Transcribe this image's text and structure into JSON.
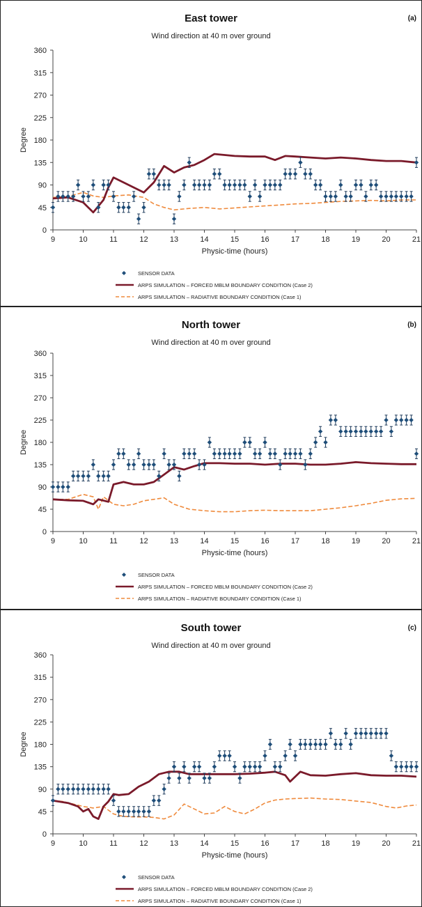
{
  "chart_data": [
    {
      "type": "line",
      "panel_label": "(a)",
      "title": "East tower",
      "subtitle": "Wind direction at 40 m over ground",
      "xlabel": "Physic-time (hours)",
      "ylabel": "Degree",
      "xlim": [
        9,
        21
      ],
      "ylim": [
        0,
        360
      ],
      "x_ticks": [
        9,
        10,
        11,
        12,
        13,
        14,
        15,
        16,
        17,
        18,
        19,
        20,
        21
      ],
      "y_ticks": [
        0,
        45,
        90,
        135,
        180,
        225,
        270,
        315,
        360
      ],
      "grid": false,
      "legend_position": "bottom",
      "legend": [
        "SENSOR DATA",
        "ARPS SIMULATION – FORCED  MBLM BOUNDARY CONDITION  (Case 2)",
        "ARPS SIMULATION – RADIATIVE  BOUNDARY CONDITION  (Case 1)"
      ],
      "series": [
        {
          "name": "SENSOR DATA",
          "style": "markers-errorbars",
          "error": 10,
          "x": [
            9.0,
            9.17,
            9.33,
            9.5,
            9.67,
            9.83,
            10.0,
            10.17,
            10.33,
            10.5,
            10.67,
            10.83,
            11.0,
            11.17,
            11.33,
            11.5,
            11.67,
            11.83,
            12.0,
            12.17,
            12.33,
            12.5,
            12.67,
            12.83,
            13.0,
            13.17,
            13.33,
            13.5,
            13.67,
            13.83,
            14.0,
            14.17,
            14.33,
            14.5,
            14.67,
            14.83,
            15.0,
            15.17,
            15.33,
            15.5,
            15.67,
            15.83,
            16.0,
            16.17,
            16.33,
            16.5,
            16.67,
            16.83,
            17.0,
            17.17,
            17.33,
            17.5,
            17.67,
            17.83,
            18.0,
            18.17,
            18.33,
            18.5,
            18.67,
            18.83,
            19.0,
            19.17,
            19.33,
            19.5,
            19.67,
            19.83,
            20.0,
            20.17,
            20.33,
            20.5,
            20.67,
            20.83,
            21.0
          ],
          "values": [
            45,
            67,
            67,
            67,
            67,
            90,
            67,
            67,
            90,
            45,
            90,
            90,
            67,
            45,
            45,
            45,
            67,
            22,
            45,
            112,
            112,
            90,
            90,
            90,
            22,
            67,
            90,
            135,
            90,
            90,
            90,
            90,
            112,
            112,
            90,
            90,
            90,
            90,
            90,
            67,
            90,
            67,
            90,
            90,
            90,
            90,
            112,
            112,
            112,
            135,
            112,
            112,
            90,
            90,
            67,
            67,
            67,
            90,
            67,
            67,
            90,
            90,
            67,
            90,
            90,
            67,
            67,
            67,
            67,
            67,
            67,
            67,
            135
          ]
        },
        {
          "name": "ARPS SIMULATION – FORCED  MBLM BOUNDARY CONDITION  (Case 2)",
          "style": "solid",
          "color": "#7a1a2a",
          "x": [
            9.0,
            9.5,
            10.0,
            10.33,
            10.67,
            10.83,
            11.0,
            11.33,
            11.67,
            12.0,
            12.33,
            12.67,
            13.0,
            13.33,
            13.67,
            14.0,
            14.33,
            14.67,
            15.0,
            15.5,
            16.0,
            16.33,
            16.67,
            17.0,
            17.5,
            18.0,
            18.5,
            19.0,
            19.5,
            20.0,
            20.5,
            21.0
          ],
          "values": [
            63,
            65,
            55,
            35,
            60,
            85,
            105,
            95,
            85,
            75,
            95,
            128,
            115,
            125,
            130,
            140,
            152,
            150,
            148,
            147,
            147,
            140,
            148,
            147,
            145,
            143,
            145,
            143,
            140,
            138,
            138,
            135
          ]
        },
        {
          "name": "ARPS SIMULATION – RADIATIVE  BOUNDARY CONDITION  (Case 1)",
          "style": "dashed",
          "color": "#ef8a3c",
          "x": [
            9.0,
            9.5,
            10.0,
            10.33,
            10.67,
            11.0,
            11.5,
            12.0,
            12.33,
            12.67,
            13.0,
            13.5,
            14.0,
            14.5,
            15.0,
            15.5,
            16.0,
            16.5,
            17.0,
            17.5,
            18.0,
            18.5,
            19.0,
            19.5,
            20.0,
            20.5,
            21.0
          ],
          "values": [
            65,
            67,
            75,
            68,
            65,
            68,
            70,
            65,
            52,
            45,
            40,
            43,
            45,
            42,
            44,
            46,
            48,
            50,
            52,
            53,
            55,
            57,
            58,
            59,
            58,
            60,
            60
          ]
        }
      ]
    },
    {
      "type": "line",
      "panel_label": "(b)",
      "title": "North tower",
      "subtitle": "Wind direction at 40 m over ground",
      "xlabel": "Physic-time (hours)",
      "ylabel": "Degree",
      "xlim": [
        9,
        21
      ],
      "ylim": [
        0,
        360
      ],
      "x_ticks": [
        9,
        10,
        11,
        12,
        13,
        14,
        15,
        16,
        17,
        18,
        19,
        20,
        21
      ],
      "y_ticks": [
        0,
        45,
        90,
        135,
        180,
        225,
        270,
        315,
        360
      ],
      "grid": false,
      "legend_position": "bottom",
      "legend": [
        "SENSOR DATA",
        "ARPS SIMULATION – FORCED  MBLM BOUNDARY CONDITION  (Case 2)",
        "ARPS SIMULATION – RADIATIVE  BOUNDARY CONDITION  (Case 1)"
      ],
      "series": [
        {
          "name": "SENSOR DATA",
          "style": "markers-errorbars",
          "error": 10,
          "x": [
            9.0,
            9.17,
            9.33,
            9.5,
            9.67,
            9.83,
            10.0,
            10.17,
            10.33,
            10.5,
            10.67,
            10.83,
            11.0,
            11.17,
            11.33,
            11.5,
            11.67,
            11.83,
            12.0,
            12.17,
            12.33,
            12.5,
            12.67,
            12.83,
            13.0,
            13.17,
            13.33,
            13.5,
            13.67,
            13.83,
            14.0,
            14.17,
            14.33,
            14.5,
            14.67,
            14.83,
            15.0,
            15.17,
            15.33,
            15.5,
            15.67,
            15.83,
            16.0,
            16.17,
            16.33,
            16.5,
            16.67,
            16.83,
            17.0,
            17.17,
            17.33,
            17.5,
            17.67,
            17.83,
            18.0,
            18.17,
            18.33,
            18.5,
            18.67,
            18.83,
            19.0,
            19.17,
            19.33,
            19.5,
            19.67,
            19.83,
            20.0,
            20.17,
            20.33,
            20.5,
            20.67,
            20.83,
            21.0
          ],
          "values": [
            90,
            90,
            90,
            90,
            112,
            112,
            112,
            112,
            135,
            112,
            112,
            112,
            135,
            157,
            157,
            135,
            135,
            157,
            135,
            135,
            135,
            112,
            157,
            135,
            135,
            112,
            157,
            157,
            157,
            135,
            135,
            180,
            157,
            157,
            157,
            157,
            157,
            157,
            180,
            180,
            157,
            157,
            180,
            157,
            157,
            135,
            157,
            157,
            157,
            157,
            135,
            157,
            180,
            202,
            180,
            225,
            225,
            202,
            202,
            202,
            202,
            202,
            202,
            202,
            202,
            202,
            225,
            202,
            225,
            225,
            225,
            225,
            157
          ]
        },
        {
          "name": "ARPS SIMULATION – FORCED  MBLM BOUNDARY CONDITION  (Case 2)",
          "style": "solid",
          "color": "#7a1a2a",
          "x": [
            9.0,
            9.5,
            10.0,
            10.33,
            10.5,
            10.83,
            11.0,
            11.33,
            11.67,
            12.0,
            12.33,
            12.67,
            13.0,
            13.33,
            13.67,
            14.0,
            14.5,
            15.0,
            15.5,
            16.0,
            16.5,
            17.0,
            17.5,
            18.0,
            18.5,
            19.0,
            19.5,
            20.0,
            20.5,
            21.0
          ],
          "values": [
            65,
            63,
            62,
            55,
            65,
            60,
            95,
            100,
            95,
            95,
            100,
            115,
            130,
            125,
            132,
            138,
            138,
            137,
            137,
            135,
            137,
            137,
            135,
            135,
            137,
            140,
            138,
            137,
            136,
            136
          ]
        },
        {
          "name": "ARPS SIMULATION – RADIATIVE  BOUNDARY CONDITION  (Case 1)",
          "style": "dashed",
          "color": "#ef8a3c",
          "x": [
            9.0,
            9.5,
            10.0,
            10.33,
            10.5,
            10.67,
            11.0,
            11.33,
            11.67,
            12.0,
            12.33,
            12.67,
            13.0,
            13.5,
            14.0,
            14.5,
            15.0,
            15.5,
            16.0,
            16.5,
            17.0,
            17.5,
            18.0,
            18.5,
            19.0,
            19.5,
            20.0,
            20.5,
            21.0
          ],
          "values": [
            65,
            65,
            75,
            70,
            45,
            70,
            55,
            52,
            55,
            62,
            65,
            68,
            55,
            45,
            42,
            40,
            40,
            42,
            43,
            42,
            42,
            42,
            45,
            48,
            52,
            57,
            63,
            66,
            67
          ]
        }
      ]
    },
    {
      "type": "line",
      "panel_label": "(c)",
      "title": "South tower",
      "subtitle": "Wind direction at 40 m over ground",
      "xlabel": "Physic-time (hours)",
      "ylabel": "Degree",
      "xlim": [
        9,
        21
      ],
      "ylim": [
        0,
        360
      ],
      "x_ticks": [
        9,
        10,
        11,
        12,
        13,
        14,
        15,
        16,
        17,
        18,
        19,
        20,
        21
      ],
      "y_ticks": [
        0,
        45,
        90,
        135,
        180,
        225,
        270,
        315,
        360
      ],
      "grid": false,
      "legend_position": "bottom",
      "legend": [
        "SENSOR DATA",
        "ARPS SIMULATION – FORCED  MBLM BOUNDARY CONDITION  (Case 2)",
        "ARPS SIMULATION – RADIATIVE  BOUNDARY CONDITION  (Case 1)"
      ],
      "series": [
        {
          "name": "SENSOR DATA",
          "style": "markers-errorbars",
          "error": 10,
          "x": [
            9.0,
            9.17,
            9.33,
            9.5,
            9.67,
            9.83,
            10.0,
            10.17,
            10.33,
            10.5,
            10.67,
            10.83,
            11.0,
            11.17,
            11.33,
            11.5,
            11.67,
            11.83,
            12.0,
            12.17,
            12.33,
            12.5,
            12.67,
            12.83,
            13.0,
            13.17,
            13.33,
            13.5,
            13.67,
            13.83,
            14.0,
            14.17,
            14.33,
            14.5,
            14.67,
            14.83,
            15.0,
            15.17,
            15.33,
            15.5,
            15.67,
            15.83,
            16.0,
            16.17,
            16.33,
            16.5,
            16.67,
            16.83,
            17.0,
            17.17,
            17.33,
            17.5,
            17.67,
            17.83,
            18.0,
            18.17,
            18.33,
            18.5,
            18.67,
            18.83,
            19.0,
            19.17,
            19.33,
            19.5,
            19.67,
            19.83,
            20.0,
            20.17,
            20.33,
            20.5,
            20.67,
            20.83,
            21.0
          ],
          "values": [
            67,
            90,
            90,
            90,
            90,
            90,
            90,
            90,
            90,
            90,
            90,
            90,
            67,
            45,
            45,
            45,
            45,
            45,
            45,
            45,
            67,
            67,
            90,
            112,
            135,
            112,
            135,
            112,
            135,
            135,
            112,
            112,
            135,
            157,
            157,
            157,
            135,
            112,
            135,
            135,
            135,
            135,
            157,
            180,
            135,
            135,
            157,
            180,
            157,
            180,
            180,
            180,
            180,
            180,
            180,
            202,
            180,
            180,
            202,
            180,
            202,
            202,
            202,
            202,
            202,
            202,
            202,
            157,
            135,
            135,
            135,
            135,
            135
          ]
        },
        {
          "name": "ARPS SIMULATION – FORCED  MBLM BOUNDARY CONDITION  (Case 2)",
          "style": "solid",
          "color": "#7a1a2a",
          "x": [
            9.0,
            9.5,
            9.83,
            10.0,
            10.17,
            10.33,
            10.5,
            10.67,
            10.83,
            11.0,
            11.17,
            11.5,
            11.83,
            12.17,
            12.5,
            12.83,
            13.17,
            13.5,
            13.83,
            14.17,
            14.5,
            15.0,
            15.5,
            16.0,
            16.33,
            16.67,
            16.83,
            17.17,
            17.5,
            18.0,
            18.5,
            19.0,
            19.5,
            20.0,
            20.5,
            21.0
          ],
          "values": [
            67,
            62,
            55,
            45,
            50,
            35,
            30,
            55,
            65,
            80,
            78,
            80,
            95,
            105,
            120,
            125,
            125,
            120,
            120,
            120,
            120,
            120,
            121,
            123,
            125,
            118,
            105,
            125,
            118,
            117,
            120,
            122,
            118,
            117,
            117,
            115
          ]
        },
        {
          "name": "ARPS SIMULATION – RADIATIVE  BOUNDARY CONDITION  (Case 1)",
          "style": "dashed",
          "color": "#ef8a3c",
          "x": [
            9.0,
            9.33,
            9.67,
            10.0,
            10.33,
            10.67,
            11.0,
            11.33,
            11.67,
            12.0,
            12.33,
            12.67,
            13.0,
            13.33,
            13.67,
            14.0,
            14.33,
            14.67,
            15.0,
            15.33,
            15.67,
            16.0,
            16.33,
            16.67,
            17.0,
            17.5,
            18.0,
            18.5,
            19.0,
            19.5,
            20.0,
            20.33,
            20.67,
            21.0
          ],
          "values": [
            67,
            65,
            60,
            55,
            52,
            55,
            40,
            35,
            34,
            34,
            33,
            30,
            38,
            60,
            50,
            40,
            42,
            55,
            45,
            40,
            50,
            62,
            68,
            70,
            71,
            72,
            70,
            69,
            66,
            63,
            55,
            52,
            56,
            58
          ]
        }
      ]
    }
  ]
}
